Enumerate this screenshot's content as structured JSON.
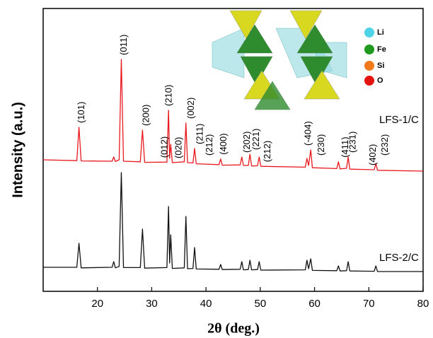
{
  "chart_data": {
    "type": "line",
    "x_label": "2θ (deg.)",
    "y_label": "Intensity (a.u.)",
    "xlim": [
      10,
      80
    ],
    "ylim": [
      0,
      100
    ],
    "xticks": [
      20,
      30,
      40,
      50,
      60,
      70,
      80
    ],
    "x": [
      10,
      16.2,
      16.6,
      17.0,
      22.7,
      23.0,
      23.3,
      24.0,
      24.4,
      24.8,
      27.9,
      28.3,
      28.7,
      32.8,
      33.1,
      33.3,
      33.5,
      33.8,
      36.0,
      36.3,
      36.6,
      37.6,
      37.9,
      38.2,
      42.4,
      42.7,
      43.0,
      46.3,
      46.6,
      46.9,
      47.8,
      48.1,
      48.4,
      49.5,
      49.8,
      50.1,
      58.3,
      58.6,
      58.9,
      59.3,
      59.6,
      64.1,
      64.4,
      64.7,
      65.9,
      66.2,
      66.5,
      71.0,
      71.3,
      71.6,
      80
    ],
    "series": [
      {
        "name": "LFS-1/C",
        "color": "#e8191f",
        "values": [
          46.5,
          46.2,
          58,
          46.1,
          46,
          47.5,
          45.9,
          46.5,
          82,
          46,
          45.8,
          57,
          45.6,
          45.7,
          64,
          47,
          52,
          45.5,
          45.8,
          59.5,
          45.5,
          45.4,
          50.5,
          45.1,
          44.8,
          46.8,
          44.6,
          44.7,
          47.5,
          44.5,
          44.5,
          48.5,
          44.3,
          44.4,
          47.5,
          44.2,
          43.9,
          47,
          44.5,
          50,
          43.7,
          43.4,
          45.8,
          43.3,
          43.5,
          47.5,
          43.2,
          43,
          45.2,
          42.8,
          42.5
        ]
      },
      {
        "name": "LFS-2/C",
        "color": "#111111",
        "values": [
          8.5,
          8.5,
          17,
          8.3,
          8.5,
          10.5,
          8.3,
          8.8,
          42,
          8.4,
          8.4,
          22,
          8.2,
          8.4,
          30,
          10,
          20,
          8.1,
          8.3,
          26.5,
          8,
          8.1,
          15.5,
          7.9,
          7.8,
          9.5,
          7.7,
          7.8,
          10.5,
          7.6,
          7.7,
          11,
          7.6,
          7.7,
          10.5,
          7.5,
          7.6,
          11,
          8,
          11.5,
          7.4,
          7.3,
          9,
          7.2,
          7.3,
          10.5,
          7.2,
          7.1,
          9,
          7,
          7
        ]
      }
    ],
    "annotations": [
      {
        "text": "(101)",
        "x": 16.6
      },
      {
        "text": "(011)",
        "x": 24.4
      },
      {
        "text": "(200)",
        "x": 28.5
      },
      {
        "text": "(012)",
        "x": 31.9
      },
      {
        "text": "(210)",
        "x": 32.7
      },
      {
        "text": "(020)",
        "x": 34.5
      },
      {
        "text": "(002)",
        "x": 36.8
      },
      {
        "text": "(211)",
        "x": 38.4
      },
      {
        "text": "(212)",
        "x": 40.2
      },
      {
        "text": "(400)",
        "x": 42.8
      },
      {
        "text": "(202)",
        "x": 47.1
      },
      {
        "text": "(221)",
        "x": 48.8
      },
      {
        "text": "(212)",
        "x": 50.9
      },
      {
        "text": "(-404)",
        "x": 58.4
      },
      {
        "text": "(230)",
        "x": 60.8
      },
      {
        "text": "(411)",
        "x": 65.2
      },
      {
        "text": "(231)",
        "x": 66.6
      },
      {
        "text": "(402)",
        "x": 70.3
      },
      {
        "text": "(232)",
        "x": 72.5
      }
    ]
  },
  "inset": {
    "labels": [
      "Li",
      "Fe",
      "Si",
      "O"
    ]
  }
}
